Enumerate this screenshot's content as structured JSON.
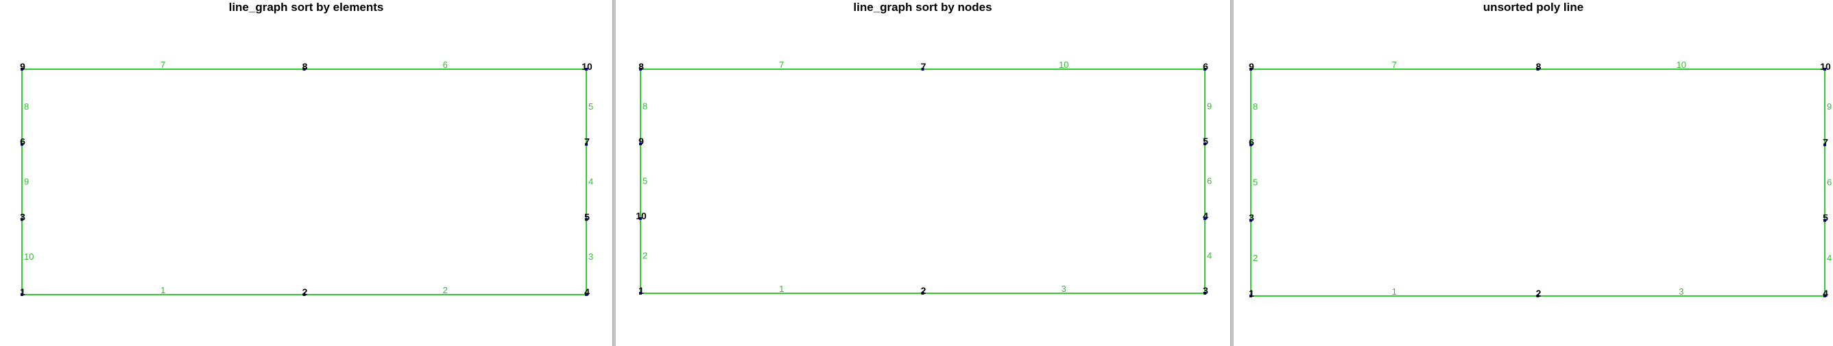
{
  "colors": {
    "edge": "#33cc33",
    "node": "#0000aa",
    "node_label": "#000000",
    "edge_label": "#33bb33"
  },
  "panels": [
    {
      "title": "line_graph sort by elements",
      "nodes": [
        {
          "label": "1",
          "x": 0,
          "y": 0
        },
        {
          "label": "2",
          "x": 2,
          "y": 0
        },
        {
          "label": "4",
          "x": 4,
          "y": 0
        },
        {
          "label": "3",
          "x": 0,
          "y": 1
        },
        {
          "label": "5",
          "x": 4,
          "y": 1
        },
        {
          "label": "6",
          "x": 0,
          "y": 2
        },
        {
          "label": "7",
          "x": 4,
          "y": 2
        },
        {
          "label": "9",
          "x": 0,
          "y": 3
        },
        {
          "label": "8",
          "x": 2,
          "y": 3
        },
        {
          "label": "10",
          "x": 4,
          "y": 3
        }
      ],
      "edges": [
        {
          "label": "1",
          "from": "1",
          "to": "2"
        },
        {
          "label": "2",
          "from": "2",
          "to": "4"
        },
        {
          "label": "3",
          "from": "4",
          "to": "5"
        },
        {
          "label": "4",
          "from": "5",
          "to": "7"
        },
        {
          "label": "5",
          "from": "7",
          "to": "10"
        },
        {
          "label": "6",
          "from": "10",
          "to": "8"
        },
        {
          "label": "7",
          "from": "8",
          "to": "9"
        },
        {
          "label": "8",
          "from": "9",
          "to": "6"
        },
        {
          "label": "9",
          "from": "6",
          "to": "3"
        },
        {
          "label": "10",
          "from": "3",
          "to": "1"
        }
      ]
    },
    {
      "title": "line_graph sort by nodes",
      "nodes": [
        {
          "label": "1",
          "x": 0,
          "y": 0
        },
        {
          "label": "2",
          "x": 2,
          "y": 0
        },
        {
          "label": "3",
          "x": 4,
          "y": 0
        },
        {
          "label": "10",
          "x": 0,
          "y": 1
        },
        {
          "label": "4",
          "x": 4,
          "y": 1
        },
        {
          "label": "9",
          "x": 0,
          "y": 2
        },
        {
          "label": "5",
          "x": 4,
          "y": 2
        },
        {
          "label": "8",
          "x": 0,
          "y": 3
        },
        {
          "label": "7",
          "x": 2,
          "y": 3
        },
        {
          "label": "6",
          "x": 4,
          "y": 3
        }
      ],
      "edges": [
        {
          "label": "1",
          "from": "1",
          "to": "2"
        },
        {
          "label": "3",
          "from": "2",
          "to": "3"
        },
        {
          "label": "4",
          "from": "3",
          "to": "4"
        },
        {
          "label": "6",
          "from": "4",
          "to": "5"
        },
        {
          "label": "9",
          "from": "5",
          "to": "6"
        },
        {
          "label": "10",
          "from": "6",
          "to": "7"
        },
        {
          "label": "7",
          "from": "7",
          "to": "8"
        },
        {
          "label": "8",
          "from": "8",
          "to": "9"
        },
        {
          "label": "5",
          "from": "9",
          "to": "10"
        },
        {
          "label": "2",
          "from": "10",
          "to": "1"
        }
      ]
    },
    {
      "title": "unsorted poly line",
      "nodes": [
        {
          "label": "1",
          "x": 0,
          "y": 0
        },
        {
          "label": "2",
          "x": 2,
          "y": 0
        },
        {
          "label": "4",
          "x": 4,
          "y": 0
        },
        {
          "label": "3",
          "x": 0,
          "y": 1
        },
        {
          "label": "5",
          "x": 4,
          "y": 1
        },
        {
          "label": "6",
          "x": 0,
          "y": 2
        },
        {
          "label": "7",
          "x": 4,
          "y": 2
        },
        {
          "label": "9",
          "x": 0,
          "y": 3
        },
        {
          "label": "8",
          "x": 2,
          "y": 3
        },
        {
          "label": "10",
          "x": 4,
          "y": 3
        }
      ],
      "edges": [
        {
          "label": "1",
          "from": "1",
          "to": "2"
        },
        {
          "label": "3",
          "from": "2",
          "to": "4"
        },
        {
          "label": "4",
          "from": "4",
          "to": "5"
        },
        {
          "label": "6",
          "from": "5",
          "to": "7"
        },
        {
          "label": "9",
          "from": "7",
          "to": "10"
        },
        {
          "label": "10",
          "from": "10",
          "to": "8"
        },
        {
          "label": "7",
          "from": "8",
          "to": "9"
        },
        {
          "label": "8",
          "from": "9",
          "to": "6"
        },
        {
          "label": "5",
          "from": "6",
          "to": "3"
        },
        {
          "label": "2",
          "from": "3",
          "to": "1"
        }
      ]
    }
  ]
}
